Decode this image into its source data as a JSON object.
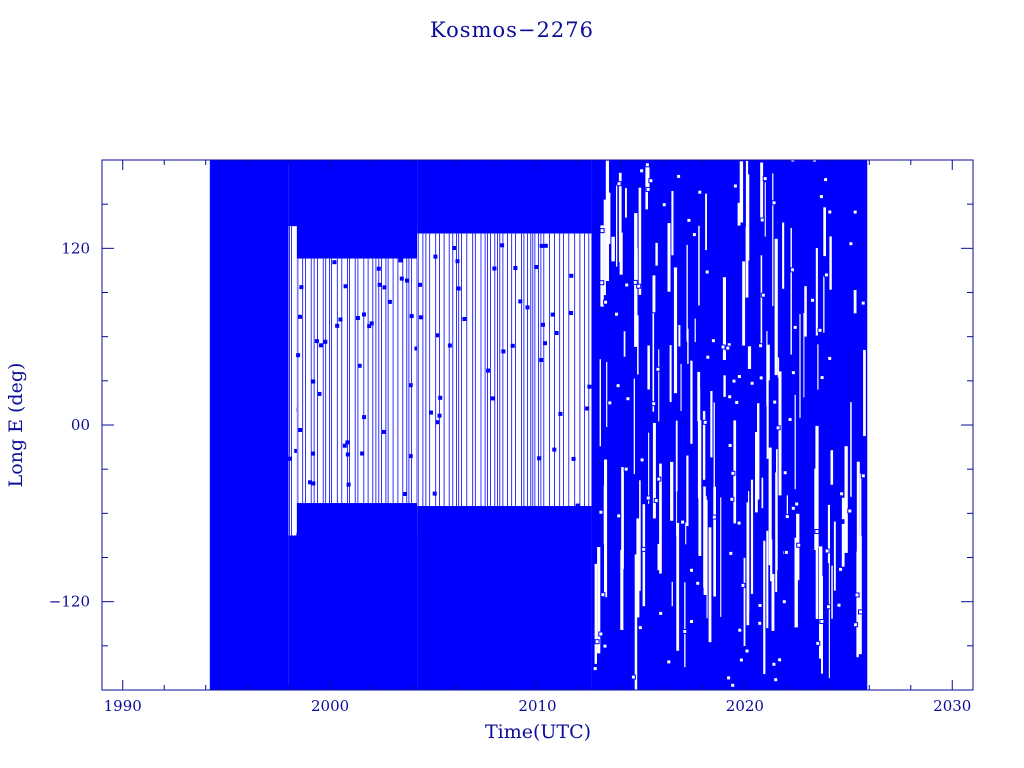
{
  "chart_data": {
    "type": "line",
    "title": "Kosmos−2276",
    "xlabel": "Time(UTC)",
    "ylabel": "Long E (deg)",
    "xlim": [
      1989.0,
      2031.0
    ],
    "ylim": [
      -180,
      180
    ],
    "x_ticks": [
      1990,
      2000,
      2010,
      2020,
      2030
    ],
    "x_tick_labels": [
      "1990",
      "2000",
      "2010",
      "2020",
      "2030"
    ],
    "y_ticks": [
      120,
      0,
      -120
    ],
    "y_tick_labels": [
      "120",
      "00",
      "−120"
    ],
    "series_color": "#0000ff",
    "grid": false,
    "series": [
      {
        "x_range": [
          1994.2,
          2025.9
        ],
        "segments": [
          {
            "x": [
              1994.2,
              1998.0
            ],
            "y_range": [
              -180,
              180
            ]
          },
          {
            "x": [
              1998.0,
              2004.2
            ],
            "upper": 135,
            "lower": -75
          },
          {
            "x": [
              1998.4,
              2004.2
            ],
            "upper": 113,
            "lower": -53
          },
          {
            "x": [
              2004.2,
              2012.6
            ],
            "upper": 130,
            "lower": -55
          },
          {
            "x": [
              2012.6,
              2025.9
            ],
            "y_range": [
              -180,
              180
            ]
          }
        ]
      }
    ]
  }
}
